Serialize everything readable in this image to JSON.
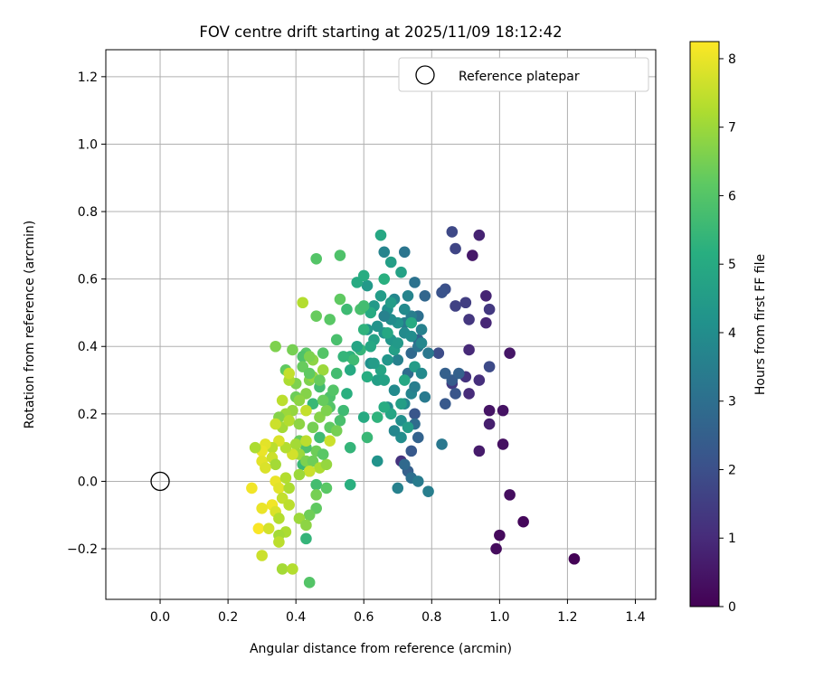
{
  "chart_data": {
    "type": "scatter",
    "title": "FOV centre drift starting at 2025/11/09 18:12:42",
    "xlabel": "Angular distance from reference (arcmin)",
    "ylabel": "Rotation from reference (arcmin)",
    "xlim": [
      -0.16,
      1.46
    ],
    "ylim": [
      -0.35,
      1.28
    ],
    "xticks": [
      0.0,
      0.2,
      0.4,
      0.6,
      0.8,
      1.0,
      1.2,
      1.4
    ],
    "xtick_labels": [
      "0.0",
      "0.2",
      "0.4",
      "0.6",
      "0.8",
      "1.0",
      "1.2",
      "1.4"
    ],
    "yticks": [
      -0.2,
      0.0,
      0.2,
      0.4,
      0.6,
      0.8,
      1.0,
      1.2
    ],
    "ytick_labels": [
      "−0.2",
      "0.0",
      "0.2",
      "0.4",
      "0.6",
      "0.8",
      "1.0",
      "1.2"
    ],
    "grid": true,
    "legend": {
      "placement": "top-right",
      "label": "Reference platepar"
    },
    "reference_point": {
      "x": 0.0,
      "y": 0.0
    },
    "colorbar": {
      "label": "Hours from first FF file",
      "colormap": "viridis",
      "range": [
        0,
        8.25
      ],
      "ticks": [
        0,
        1,
        2,
        3,
        4,
        5,
        6,
        7,
        8
      ],
      "tick_labels": [
        "0",
        "1",
        "2",
        "3",
        "4",
        "5",
        "6",
        "7",
        "8"
      ]
    },
    "points": [
      {
        "x": 1.22,
        "y": -0.23,
        "hours": 0.05
      },
      {
        "x": 1.07,
        "y": -0.12,
        "hours": 0.15
      },
      {
        "x": 1.0,
        "y": -0.16,
        "hours": 0.2
      },
      {
        "x": 0.99,
        "y": -0.2,
        "hours": 0.25
      },
      {
        "x": 1.03,
        "y": -0.04,
        "hours": 0.3
      },
      {
        "x": 1.01,
        "y": 0.11,
        "hours": 0.35
      },
      {
        "x": 1.01,
        "y": 0.21,
        "hours": 0.4
      },
      {
        "x": 0.97,
        "y": 0.21,
        "hours": 0.45
      },
      {
        "x": 1.03,
        "y": 0.38,
        "hours": 0.5
      },
      {
        "x": 0.92,
        "y": 0.67,
        "hours": 0.55
      },
      {
        "x": 0.94,
        "y": 0.09,
        "hours": 0.6
      },
      {
        "x": 0.97,
        "y": 0.17,
        "hours": 0.7
      },
      {
        "x": 0.94,
        "y": 0.73,
        "hours": 0.8
      },
      {
        "x": 0.96,
        "y": 0.55,
        "hours": 0.85
      },
      {
        "x": 0.96,
        "y": 0.47,
        "hours": 0.9
      },
      {
        "x": 0.91,
        "y": 0.39,
        "hours": 0.95
      },
      {
        "x": 0.91,
        "y": 0.26,
        "hours": 1.0
      },
      {
        "x": 0.94,
        "y": 0.3,
        "hours": 1.1
      },
      {
        "x": 0.9,
        "y": 0.31,
        "hours": 1.2
      },
      {
        "x": 0.91,
        "y": 0.48,
        "hours": 1.3
      },
      {
        "x": 0.97,
        "y": 0.51,
        "hours": 1.35
      },
      {
        "x": 0.86,
        "y": 0.29,
        "hours": 1.4
      },
      {
        "x": 0.9,
        "y": 0.53,
        "hours": 1.5
      },
      {
        "x": 0.87,
        "y": 0.52,
        "hours": 1.6
      },
      {
        "x": 0.87,
        "y": 0.69,
        "hours": 1.7
      },
      {
        "x": 0.86,
        "y": 0.74,
        "hours": 1.8
      },
      {
        "x": 0.97,
        "y": 0.34,
        "hours": 1.85
      },
      {
        "x": 0.82,
        "y": 0.38,
        "hours": 1.9
      },
      {
        "x": 0.84,
        "y": 0.57,
        "hours": 2.0
      },
      {
        "x": 0.83,
        "y": 0.56,
        "hours": 2.1
      },
      {
        "x": 0.87,
        "y": 0.26,
        "hours": 2.2
      },
      {
        "x": 0.84,
        "y": 0.23,
        "hours": 2.3
      },
      {
        "x": 0.86,
        "y": 0.3,
        "hours": 2.4
      },
      {
        "x": 0.84,
        "y": 0.32,
        "hours": 2.5
      },
      {
        "x": 0.88,
        "y": 0.32,
        "hours": 2.55
      },
      {
        "x": 0.76,
        "y": 0.42,
        "hours": 2.6
      },
      {
        "x": 0.78,
        "y": 0.55,
        "hours": 2.7
      },
      {
        "x": 0.74,
        "y": 0.38,
        "hours": 2.8
      },
      {
        "x": 0.73,
        "y": 0.32,
        "hours": 2.9
      },
      {
        "x": 0.74,
        "y": 0.09,
        "hours": 2.3
      },
      {
        "x": 0.73,
        "y": 0.03,
        "hours": 2.5
      },
      {
        "x": 0.71,
        "y": 0.06,
        "hours": 1.2
      },
      {
        "x": 0.72,
        "y": 0.05,
        "hours": 2.8
      },
      {
        "x": 0.74,
        "y": 0.01,
        "hours": 3.0
      },
      {
        "x": 0.76,
        "y": 0.13,
        "hours": 2.6
      },
      {
        "x": 0.75,
        "y": 0.2,
        "hours": 2.2
      },
      {
        "x": 0.75,
        "y": 0.17,
        "hours": 2.9
      },
      {
        "x": 0.76,
        "y": 0.49,
        "hours": 3.0
      },
      {
        "x": 0.75,
        "y": 0.59,
        "hours": 3.1
      },
      {
        "x": 0.76,
        "y": 0.4,
        "hours": 3.2
      },
      {
        "x": 0.83,
        "y": 0.11,
        "hours": 3.3
      },
      {
        "x": 0.78,
        "y": 0.25,
        "hours": 3.35
      },
      {
        "x": 0.76,
        "y": -0.0,
        "hours": 3.4
      },
      {
        "x": 0.79,
        "y": -0.03,
        "hours": 3.5
      },
      {
        "x": 0.7,
        "y": -0.02,
        "hours": 3.6
      },
      {
        "x": 0.72,
        "y": 0.68,
        "hours": 3.2
      },
      {
        "x": 0.66,
        "y": 0.68,
        "hours": 3.7
      },
      {
        "x": 0.69,
        "y": 0.54,
        "hours": 3.8
      },
      {
        "x": 0.72,
        "y": 0.47,
        "hours": 3.4
      },
      {
        "x": 0.74,
        "y": 0.49,
        "hours": 3.5
      },
      {
        "x": 0.72,
        "y": 0.44,
        "hours": 3.9
      },
      {
        "x": 0.7,
        "y": 0.36,
        "hours": 3.6
      },
      {
        "x": 0.74,
        "y": 0.26,
        "hours": 3.7
      },
      {
        "x": 0.72,
        "y": 0.23,
        "hours": 3.8
      },
      {
        "x": 0.69,
        "y": 0.27,
        "hours": 3.9
      },
      {
        "x": 0.67,
        "y": 0.22,
        "hours": 4.0
      },
      {
        "x": 0.71,
        "y": 0.13,
        "hours": 4.0
      },
      {
        "x": 0.67,
        "y": 0.51,
        "hours": 4.1
      },
      {
        "x": 0.66,
        "y": 0.44,
        "hours": 4.2
      },
      {
        "x": 0.68,
        "y": 0.42,
        "hours": 4.3
      },
      {
        "x": 0.63,
        "y": 0.52,
        "hours": 4.4
      },
      {
        "x": 0.65,
        "y": 0.55,
        "hours": 4.5
      },
      {
        "x": 0.68,
        "y": 0.65,
        "hours": 4.6
      },
      {
        "x": 0.63,
        "y": 0.42,
        "hours": 4.7
      },
      {
        "x": 0.62,
        "y": 0.35,
        "hours": 4.1
      },
      {
        "x": 0.61,
        "y": 0.45,
        "hours": 4.3
      },
      {
        "x": 0.64,
        "y": 0.06,
        "hours": 4.2
      },
      {
        "x": 0.64,
        "y": 0.3,
        "hours": 4.6
      },
      {
        "x": 0.65,
        "y": 0.33,
        "hours": 4.8
      },
      {
        "x": 0.67,
        "y": 0.44,
        "hours": 4.9
      },
      {
        "x": 0.71,
        "y": 0.62,
        "hours": 4.7
      },
      {
        "x": 0.65,
        "y": 0.73,
        "hours": 4.9
      },
      {
        "x": 0.61,
        "y": 0.58,
        "hours": 4.4
      },
      {
        "x": 0.58,
        "y": 0.59,
        "hours": 5.0
      },
      {
        "x": 0.6,
        "y": 0.61,
        "hours": 5.1
      },
      {
        "x": 0.66,
        "y": 0.6,
        "hours": 5.2
      },
      {
        "x": 0.62,
        "y": 0.5,
        "hours": 5.0
      },
      {
        "x": 0.6,
        "y": 0.45,
        "hours": 5.3
      },
      {
        "x": 0.59,
        "y": 0.39,
        "hours": 5.4
      },
      {
        "x": 0.61,
        "y": 0.31,
        "hours": 5.1
      },
      {
        "x": 0.56,
        "y": 0.37,
        "hours": 5.3
      },
      {
        "x": 0.57,
        "y": 0.36,
        "hours": 5.6
      },
      {
        "x": 0.6,
        "y": 0.19,
        "hours": 5.0
      },
      {
        "x": 0.61,
        "y": 0.13,
        "hours": 5.5
      },
      {
        "x": 0.56,
        "y": 0.1,
        "hours": 5.4
      },
      {
        "x": 0.56,
        "y": -0.01,
        "hours": 5.2
      },
      {
        "x": 0.55,
        "y": 0.51,
        "hours": 5.6
      },
      {
        "x": 0.59,
        "y": 0.51,
        "hours": 5.8
      },
      {
        "x": 0.6,
        "y": 0.52,
        "hours": 5.7
      },
      {
        "x": 0.53,
        "y": 0.67,
        "hours": 5.9
      },
      {
        "x": 0.46,
        "y": 0.66,
        "hours": 6.0
      },
      {
        "x": 0.53,
        "y": 0.54,
        "hours": 6.2
      },
      {
        "x": 0.5,
        "y": 0.48,
        "hours": 6.1
      },
      {
        "x": 0.52,
        "y": 0.42,
        "hours": 5.8
      },
      {
        "x": 0.54,
        "y": 0.37,
        "hours": 5.4
      },
      {
        "x": 0.52,
        "y": 0.32,
        "hours": 5.7
      },
      {
        "x": 0.48,
        "y": 0.38,
        "hours": 6.0
      },
      {
        "x": 0.46,
        "y": 0.49,
        "hours": 6.3
      },
      {
        "x": 0.43,
        "y": 0.38,
        "hours": 6.1
      },
      {
        "x": 0.47,
        "y": 0.28,
        "hours": 5.7
      },
      {
        "x": 0.45,
        "y": 0.23,
        "hours": 5.5
      },
      {
        "x": 0.5,
        "y": 0.25,
        "hours": 5.9
      },
      {
        "x": 0.5,
        "y": 0.22,
        "hours": 6.0
      },
      {
        "x": 0.54,
        "y": 0.21,
        "hours": 5.6
      },
      {
        "x": 0.53,
        "y": 0.18,
        "hours": 5.8
      },
      {
        "x": 0.5,
        "y": 0.16,
        "hours": 6.2
      },
      {
        "x": 0.47,
        "y": 0.13,
        "hours": 5.6
      },
      {
        "x": 0.46,
        "y": 0.09,
        "hours": 6.4
      },
      {
        "x": 0.43,
        "y": 0.1,
        "hours": 5.9
      },
      {
        "x": 0.41,
        "y": 0.12,
        "hours": 6.3
      },
      {
        "x": 0.42,
        "y": 0.05,
        "hours": 5.5
      },
      {
        "x": 0.44,
        "y": 0.03,
        "hours": 6.0
      },
      {
        "x": 0.46,
        "y": -0.01,
        "hours": 5.7
      },
      {
        "x": 0.46,
        "y": -0.04,
        "hours": 6.5
      },
      {
        "x": 0.49,
        "y": -0.02,
        "hours": 6.1
      },
      {
        "x": 0.46,
        "y": -0.08,
        "hours": 6.2
      },
      {
        "x": 0.44,
        "y": -0.1,
        "hours": 6.4
      },
      {
        "x": 0.43,
        "y": -0.17,
        "hours": 5.4
      },
      {
        "x": 0.44,
        "y": -0.3,
        "hours": 6.0
      },
      {
        "x": 0.39,
        "y": 0.39,
        "hours": 6.5
      },
      {
        "x": 0.42,
        "y": 0.37,
        "hours": 5.9
      },
      {
        "x": 0.42,
        "y": 0.34,
        "hours": 6.3
      },
      {
        "x": 0.4,
        "y": 0.29,
        "hours": 6.6
      },
      {
        "x": 0.37,
        "y": 0.33,
        "hours": 6.2
      },
      {
        "x": 0.4,
        "y": 0.25,
        "hours": 6.4
      },
      {
        "x": 0.43,
        "y": 0.26,
        "hours": 6.7
      },
      {
        "x": 0.44,
        "y": 0.3,
        "hours": 6.6
      },
      {
        "x": 0.45,
        "y": 0.31,
        "hours": 6.9
      },
      {
        "x": 0.48,
        "y": 0.33,
        "hours": 7.0
      },
      {
        "x": 0.45,
        "y": 0.36,
        "hours": 6.8
      },
      {
        "x": 0.47,
        "y": 0.3,
        "hours": 6.3
      },
      {
        "x": 0.44,
        "y": 0.37,
        "hours": 6.6
      },
      {
        "x": 0.41,
        "y": 0.24,
        "hours": 6.8
      },
      {
        "x": 0.39,
        "y": 0.21,
        "hours": 6.9
      },
      {
        "x": 0.37,
        "y": 0.2,
        "hours": 7.0
      },
      {
        "x": 0.35,
        "y": 0.19,
        "hours": 6.7
      },
      {
        "x": 0.36,
        "y": 0.16,
        "hours": 7.1
      },
      {
        "x": 0.38,
        "y": 0.18,
        "hours": 7.3
      },
      {
        "x": 0.34,
        "y": 0.17,
        "hours": 7.6
      },
      {
        "x": 0.36,
        "y": 0.24,
        "hours": 7.4
      },
      {
        "x": 0.38,
        "y": 0.3,
        "hours": 7.2
      },
      {
        "x": 0.38,
        "y": 0.32,
        "hours": 7.5
      },
      {
        "x": 0.34,
        "y": 0.4,
        "hours": 6.6
      },
      {
        "x": 0.42,
        "y": 0.53,
        "hours": 7.3
      },
      {
        "x": 0.47,
        "y": 0.19,
        "hours": 6.7
      },
      {
        "x": 0.45,
        "y": 0.16,
        "hours": 6.5
      },
      {
        "x": 0.43,
        "y": 0.21,
        "hours": 7.5
      },
      {
        "x": 0.41,
        "y": 0.17,
        "hours": 6.8
      },
      {
        "x": 0.4,
        "y": 0.11,
        "hours": 7.1
      },
      {
        "x": 0.43,
        "y": 0.12,
        "hours": 7.4
      },
      {
        "x": 0.41,
        "y": 0.08,
        "hours": 7.0
      },
      {
        "x": 0.43,
        "y": 0.06,
        "hours": 6.6
      },
      {
        "x": 0.45,
        "y": 0.06,
        "hours": 6.4
      },
      {
        "x": 0.47,
        "y": 0.04,
        "hours": 7.2
      },
      {
        "x": 0.44,
        "y": 0.03,
        "hours": 7.6
      },
      {
        "x": 0.41,
        "y": 0.02,
        "hours": 7.0
      },
      {
        "x": 0.39,
        "y": 0.08,
        "hours": 7.7
      },
      {
        "x": 0.37,
        "y": 0.1,
        "hours": 7.3
      },
      {
        "x": 0.35,
        "y": 0.12,
        "hours": 7.8
      },
      {
        "x": 0.33,
        "y": 0.1,
        "hours": 7.4
      },
      {
        "x": 0.31,
        "y": 0.11,
        "hours": 7.9
      },
      {
        "x": 0.3,
        "y": 0.09,
        "hours": 8.0
      },
      {
        "x": 0.28,
        "y": 0.1,
        "hours": 7.2
      },
      {
        "x": 0.3,
        "y": 0.06,
        "hours": 7.9
      },
      {
        "x": 0.33,
        "y": 0.07,
        "hours": 7.6
      },
      {
        "x": 0.34,
        "y": 0.05,
        "hours": 7.1
      },
      {
        "x": 0.31,
        "y": 0.04,
        "hours": 7.8
      },
      {
        "x": 0.34,
        "y": 0.0,
        "hours": 8.0
      },
      {
        "x": 0.37,
        "y": 0.01,
        "hours": 7.3
      },
      {
        "x": 0.35,
        "y": -0.02,
        "hours": 7.9
      },
      {
        "x": 0.38,
        "y": -0.02,
        "hours": 7.2
      },
      {
        "x": 0.36,
        "y": -0.05,
        "hours": 7.5
      },
      {
        "x": 0.33,
        "y": -0.07,
        "hours": 8.1
      },
      {
        "x": 0.34,
        "y": -0.09,
        "hours": 7.8
      },
      {
        "x": 0.3,
        "y": -0.08,
        "hours": 8.0
      },
      {
        "x": 0.27,
        "y": -0.02,
        "hours": 8.1
      },
      {
        "x": 0.35,
        "y": -0.11,
        "hours": 7.3
      },
      {
        "x": 0.38,
        "y": -0.07,
        "hours": 7.4
      },
      {
        "x": 0.41,
        "y": -0.11,
        "hours": 7.0
      },
      {
        "x": 0.43,
        "y": -0.13,
        "hours": 6.8
      },
      {
        "x": 0.37,
        "y": -0.15,
        "hours": 7.2
      },
      {
        "x": 0.35,
        "y": -0.16,
        "hours": 7.1
      },
      {
        "x": 0.35,
        "y": -0.18,
        "hours": 7.4
      },
      {
        "x": 0.29,
        "y": -0.14,
        "hours": 8.2
      },
      {
        "x": 0.32,
        "y": -0.14,
        "hours": 7.7
      },
      {
        "x": 0.3,
        "y": -0.22,
        "hours": 7.6
      },
      {
        "x": 0.36,
        "y": -0.26,
        "hours": 7.1
      },
      {
        "x": 0.39,
        "y": -0.26,
        "hours": 7.3
      },
      {
        "x": 0.49,
        "y": 0.05,
        "hours": 6.9
      },
      {
        "x": 0.52,
        "y": 0.15,
        "hours": 6.5
      },
      {
        "x": 0.5,
        "y": 0.12,
        "hours": 7.6
      },
      {
        "x": 0.48,
        "y": 0.08,
        "hours": 6.1
      },
      {
        "x": 0.49,
        "y": 0.21,
        "hours": 6.6
      },
      {
        "x": 0.51,
        "y": 0.27,
        "hours": 6.0
      },
      {
        "x": 0.44,
        "y": 0.32,
        "hours": 6.2
      },
      {
        "x": 0.48,
        "y": 0.24,
        "hours": 6.3
      },
      {
        "x": 0.55,
        "y": 0.26,
        "hours": 5.2
      },
      {
        "x": 0.56,
        "y": 0.33,
        "hours": 5.0
      },
      {
        "x": 0.58,
        "y": 0.4,
        "hours": 4.8
      },
      {
        "x": 0.62,
        "y": 0.4,
        "hours": 4.9
      },
      {
        "x": 0.63,
        "y": 0.35,
        "hours": 4.5
      },
      {
        "x": 0.66,
        "y": 0.3,
        "hours": 4.7
      },
      {
        "x": 0.67,
        "y": 0.36,
        "hours": 4.3
      },
      {
        "x": 0.69,
        "y": 0.39,
        "hours": 4.6
      },
      {
        "x": 0.7,
        "y": 0.41,
        "hours": 4.4
      },
      {
        "x": 0.7,
        "y": 0.47,
        "hours": 4.2
      },
      {
        "x": 0.72,
        "y": 0.51,
        "hours": 3.9
      },
      {
        "x": 0.73,
        "y": 0.55,
        "hours": 3.7
      },
      {
        "x": 0.74,
        "y": 0.47,
        "hours": 5.0
      },
      {
        "x": 0.77,
        "y": 0.41,
        "hours": 3.8
      },
      {
        "x": 0.77,
        "y": 0.45,
        "hours": 3.6
      },
      {
        "x": 0.74,
        "y": 0.43,
        "hours": 4.0
      },
      {
        "x": 0.75,
        "y": 0.34,
        "hours": 4.5
      },
      {
        "x": 0.72,
        "y": 0.3,
        "hours": 4.9
      },
      {
        "x": 0.71,
        "y": 0.23,
        "hours": 4.6
      },
      {
        "x": 0.68,
        "y": 0.2,
        "hours": 4.8
      },
      {
        "x": 0.66,
        "y": 0.22,
        "hours": 5.1
      },
      {
        "x": 0.64,
        "y": 0.19,
        "hours": 5.3
      },
      {
        "x": 0.69,
        "y": 0.15,
        "hours": 3.8
      },
      {
        "x": 0.71,
        "y": 0.18,
        "hours": 4.1
      },
      {
        "x": 0.73,
        "y": 0.16,
        "hours": 4.5
      },
      {
        "x": 0.75,
        "y": 0.28,
        "hours": 3.5
      },
      {
        "x": 0.77,
        "y": 0.32,
        "hours": 3.9
      },
      {
        "x": 0.79,
        "y": 0.38,
        "hours": 3.3
      },
      {
        "x": 0.68,
        "y": 0.48,
        "hours": 4.0
      },
      {
        "x": 0.64,
        "y": 0.46,
        "hours": 4.2
      },
      {
        "x": 0.66,
        "y": 0.49,
        "hours": 3.6
      },
      {
        "x": 0.68,
        "y": 0.53,
        "hours": 4.5
      }
    ]
  }
}
